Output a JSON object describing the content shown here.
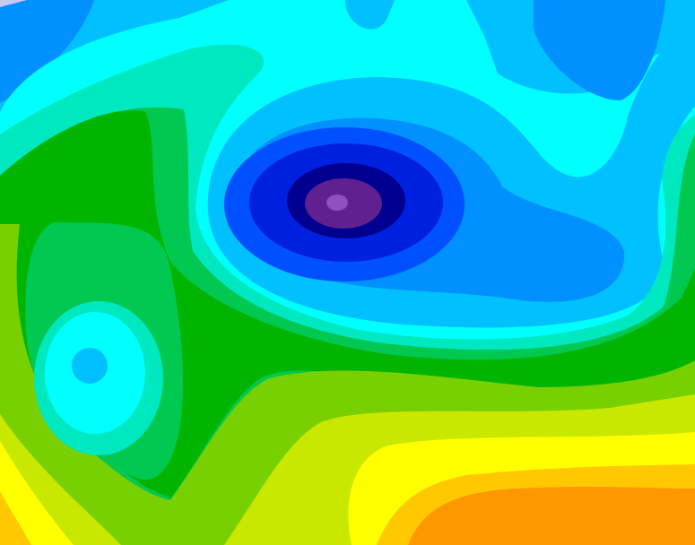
{
  "map": {
    "type": "filled-contour",
    "palette": {
      "lavender": "#c8c8f0",
      "blue": "#0090ff",
      "light_blue": "#00c0ff",
      "cyan": "#00ffff",
      "teal": "#00e8c0",
      "green": "#00c850",
      "dark_green": "#00b400",
      "yellow_green": "#78d000",
      "lime": "#c8e800",
      "yellow": "#ffff00",
      "gold": "#ffc800",
      "orange": "#ff9800",
      "bright_blue": "#0050ff",
      "deep_blue": "#0020e0",
      "navy": "#000090",
      "purple": "#602090",
      "light_purple": "#9050c0"
    }
  }
}
